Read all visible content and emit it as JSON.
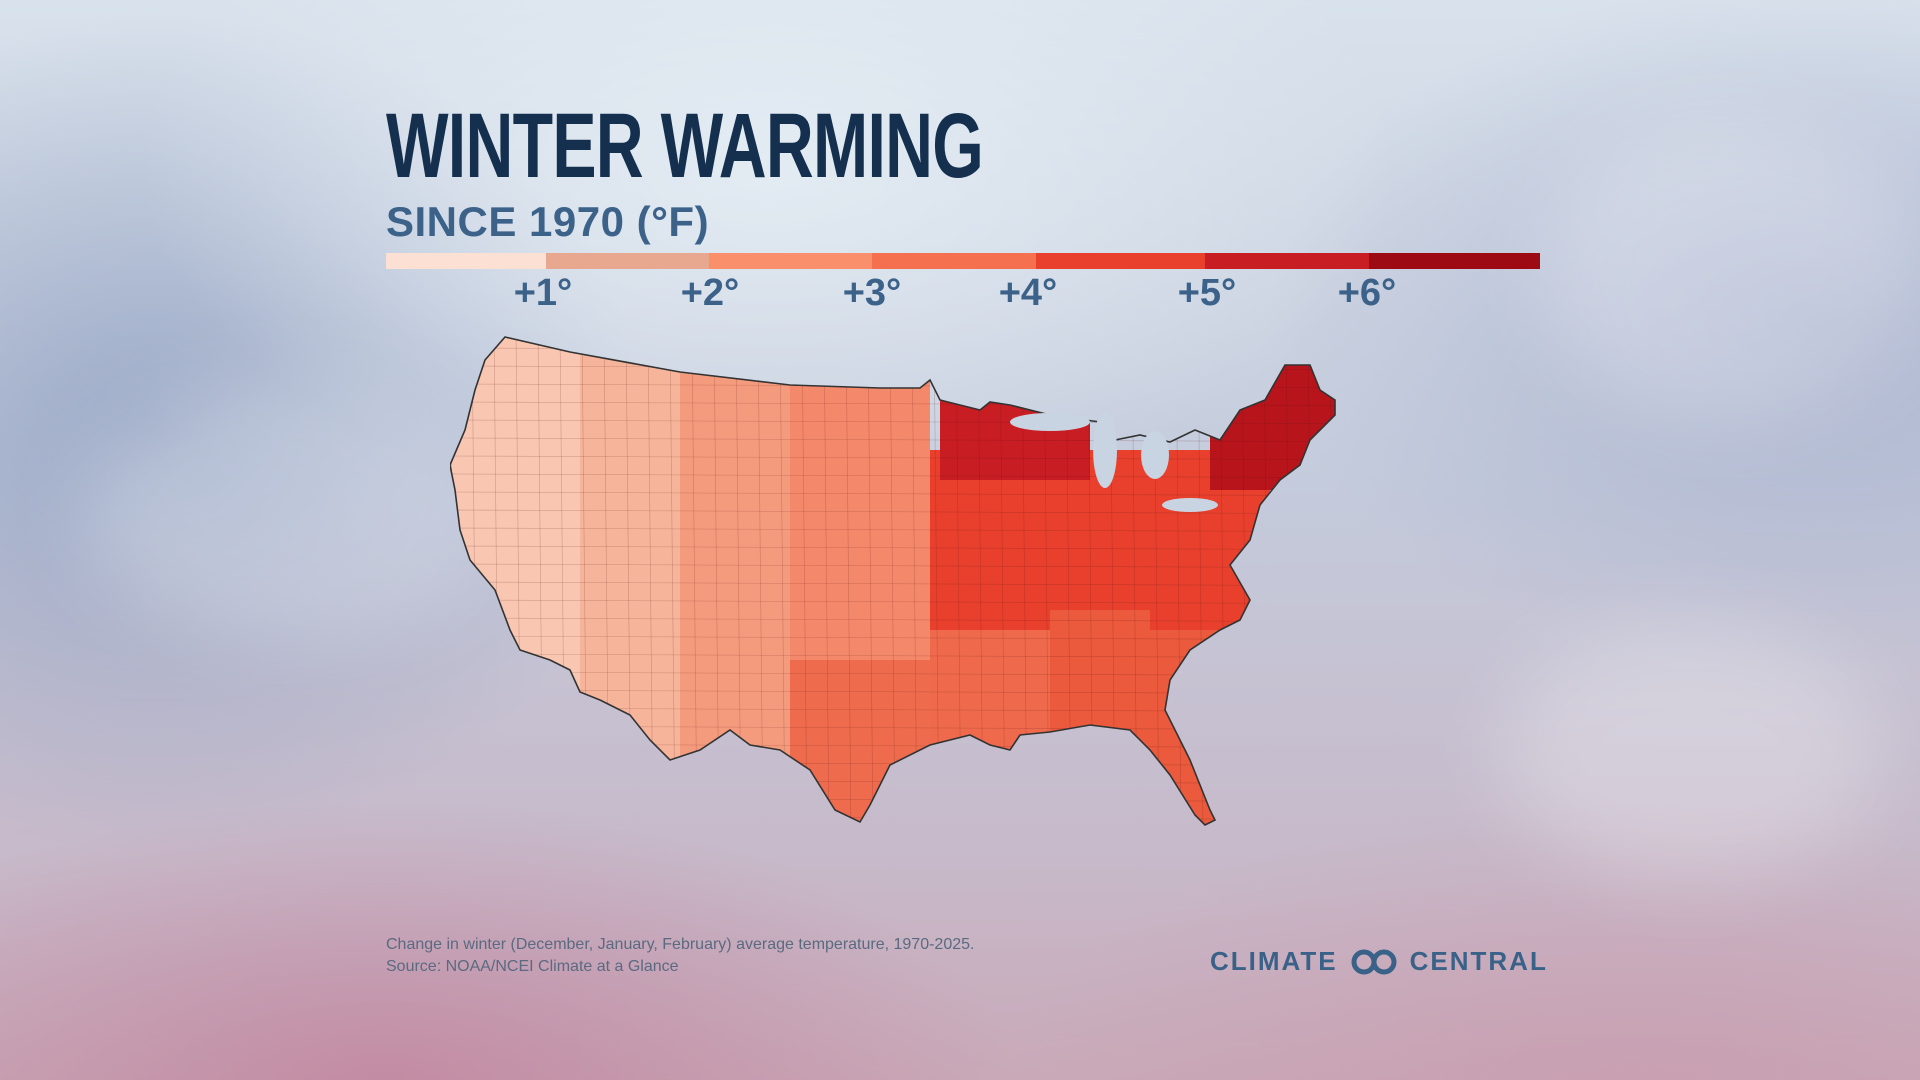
{
  "title": "WINTER WARMING",
  "subtitle": "SINCE 1970 (°F)",
  "legend": {
    "colors": [
      "#fde0d4",
      "#e8a88f",
      "#f9906b",
      "#f4704e",
      "#e8402d",
      "#c81d22",
      "#9e0a14"
    ],
    "ticks": [
      "+1°",
      "+2°",
      "+3°",
      "+4°",
      "+5°",
      "+6°"
    ]
  },
  "footnote": {
    "line1": "Change in winter (December, January, February) average temperature, 1970-2025.",
    "line2": "Source: NOAA/NCEI Climate at a Glance"
  },
  "brand": {
    "left": "CLIMATE",
    "right": "CENTRAL",
    "icon": "climate-central-logo-icon"
  },
  "map": {
    "description_icon": "us-county-choropleth",
    "region_colors": {
      "west_coast": "#f8c6b1",
      "great_basin": "#f6b49a",
      "rockies": "#f49b7d",
      "plains": "#f4886a",
      "south": "#ef6a4c",
      "midwest": "#e8402d",
      "upper_midwest": "#c81d22",
      "northeast": "#b8141c",
      "southeast": "#eb5a3c",
      "texas": "#ee6b4d"
    }
  }
}
